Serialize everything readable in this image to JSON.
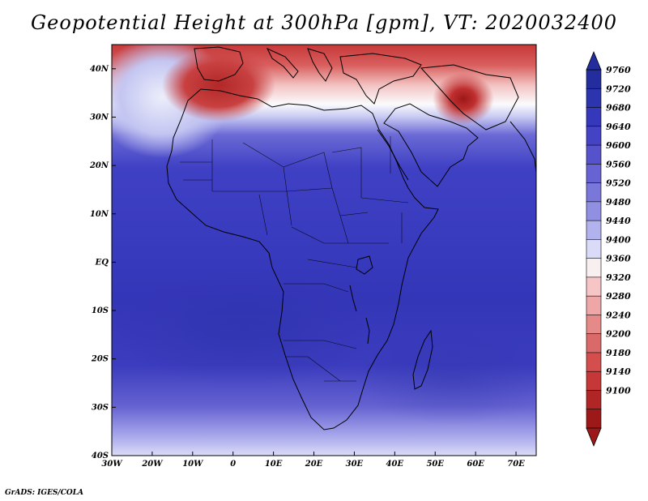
{
  "title": "Geopotential Height at 300hPa [gpm], VT: 2020032400",
  "footer": "GrADS: IGES/COLA",
  "map": {
    "variable": "Geopotential Height",
    "level": "300hPa",
    "units": "gpm",
    "valid_time": "2020032400",
    "lon_range": [
      -30,
      75
    ],
    "lat_range": [
      -40,
      45
    ],
    "lat_labels": [
      "40N",
      "30N",
      "20N",
      "10N",
      "EQ",
      "10S",
      "20S",
      "30S",
      "40S"
    ],
    "lat_values": [
      40,
      30,
      20,
      10,
      0,
      -10,
      -20,
      -30,
      -40
    ],
    "lon_labels": [
      "30W",
      "20W",
      "10W",
      "0",
      "10E",
      "20E",
      "30E",
      "40E",
      "50E",
      "60E",
      "70E"
    ],
    "lon_values": [
      -30,
      -20,
      -10,
      0,
      10,
      20,
      30,
      40,
      50,
      60,
      70
    ],
    "features": {
      "height_low_center": {
        "name": "low-height center",
        "lon": 57,
        "lat": 34
      },
      "gradient_band": {
        "name": "strong height gradient",
        "lat_from": 18,
        "lat_to": 28
      }
    }
  },
  "colorbar": {
    "labels": [
      "9760",
      "9720",
      "9680",
      "9640",
      "9600",
      "9560",
      "9520",
      "9480",
      "9440",
      "9400",
      "9360",
      "9320",
      "9280",
      "9240",
      "9200",
      "9180",
      "9140",
      "9100"
    ],
    "colors": [
      "#232d9e",
      "#2c34ae",
      "#3638bc",
      "#4443c6",
      "#5552cc",
      "#6763d3",
      "#7a77db",
      "#908fe2",
      "#b2b3ee",
      "#d9dbf8",
      "#f8f0f0",
      "#f6c6c6",
      "#eea6a6",
      "#e58989",
      "#da6a6a",
      "#d44e4e",
      "#c63838",
      "#b02626",
      "#9d1818"
    ]
  }
}
